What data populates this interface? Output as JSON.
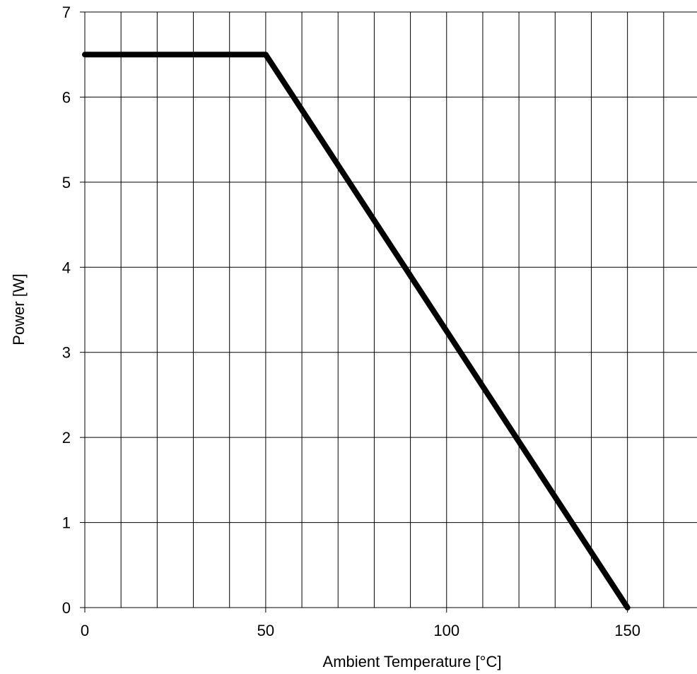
{
  "chart_data": {
    "type": "line",
    "title": "",
    "xlabel": "Ambient Temperature [°C]",
    "ylabel": "Power [W]",
    "xlim": [
      0,
      170
    ],
    "ylim": [
      0,
      7
    ],
    "x_gridlines": [
      0,
      10,
      20,
      30,
      40,
      50,
      60,
      70,
      80,
      90,
      100,
      110,
      120,
      130,
      140,
      150,
      160,
      170
    ],
    "y_gridlines": [
      0,
      1,
      2,
      3,
      4,
      5,
      6,
      7
    ],
    "x_ticks": [
      0,
      50,
      100,
      150
    ],
    "x_tick_labels": [
      "0",
      "50",
      "100",
      "150"
    ],
    "y_ticks": [
      0,
      1,
      2,
      3,
      4,
      5,
      6,
      7
    ],
    "y_tick_labels": [
      "0",
      "1",
      "2",
      "3",
      "4",
      "5",
      "6",
      "7"
    ],
    "grid": true,
    "series": [
      {
        "x": [
          0,
          50,
          150
        ],
        "y": [
          6.5,
          6.5,
          0
        ],
        "color": "#000000"
      }
    ]
  }
}
